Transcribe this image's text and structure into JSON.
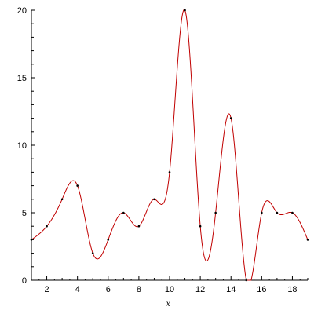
{
  "chart_data": {
    "type": "line",
    "title": "",
    "xlabel": "x",
    "ylabel": "",
    "xlim": [
      1,
      19
    ],
    "ylim": [
      0,
      20
    ],
    "xticks": [
      2,
      4,
      6,
      8,
      10,
      12,
      14,
      16,
      18
    ],
    "yticks": [
      0,
      5,
      10,
      15,
      20
    ],
    "grid": false,
    "line_style": "smooth spline through data points",
    "series": [
      {
        "color": "#c00000",
        "marker_color": "#000000",
        "x": [
          1,
          2,
          3,
          4,
          5,
          6,
          7,
          8,
          9,
          10,
          11,
          12,
          13,
          14,
          15,
          16,
          17,
          18,
          19
        ],
        "y": [
          3,
          4,
          6,
          7,
          2,
          3,
          5,
          4,
          6,
          8,
          20,
          4,
          5,
          12,
          0,
          5,
          5,
          5,
          3
        ]
      }
    ]
  }
}
